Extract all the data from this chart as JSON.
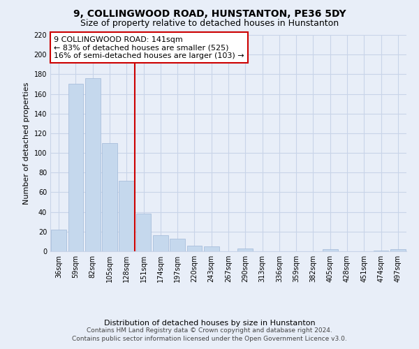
{
  "title": "9, COLLINGWOOD ROAD, HUNSTANTON, PE36 5DY",
  "subtitle": "Size of property relative to detached houses in Hunstanton",
  "xlabel": "Distribution of detached houses by size in Hunstanton",
  "ylabel": "Number of detached properties",
  "bar_labels": [
    "36sqm",
    "59sqm",
    "82sqm",
    "105sqm",
    "128sqm",
    "151sqm",
    "174sqm",
    "197sqm",
    "220sqm",
    "243sqm",
    "267sqm",
    "290sqm",
    "313sqm",
    "336sqm",
    "359sqm",
    "382sqm",
    "405sqm",
    "428sqm",
    "451sqm",
    "474sqm",
    "497sqm"
  ],
  "bar_values": [
    22,
    170,
    176,
    110,
    72,
    38,
    16,
    13,
    6,
    5,
    0,
    3,
    0,
    0,
    0,
    0,
    2,
    0,
    0,
    1,
    2
  ],
  "bar_color": "#c5d8ed",
  "bar_edge_color": "#a0b8d8",
  "vline_x": 4.5,
  "vline_color": "#cc0000",
  "ylim": [
    0,
    220
  ],
  "yticks": [
    0,
    20,
    40,
    60,
    80,
    100,
    120,
    140,
    160,
    180,
    200,
    220
  ],
  "annotation_title": "9 COLLINGWOOD ROAD: 141sqm",
  "annotation_line1": "← 83% of detached houses are smaller (525)",
  "annotation_line2": "16% of semi-detached houses are larger (103) →",
  "annotation_box_color": "white",
  "annotation_box_edge": "#cc0000",
  "footer1": "Contains HM Land Registry data © Crown copyright and database right 2024.",
  "footer2": "Contains public sector information licensed under the Open Government Licence v3.0.",
  "bg_color": "#e8eef8",
  "plot_bg_color": "#e8eef8",
  "grid_color": "#c8d4e8",
  "title_fontsize": 10,
  "subtitle_fontsize": 9,
  "ylabel_fontsize": 8,
  "xlabel_fontsize": 8,
  "tick_fontsize": 7,
  "ann_fontsize": 8,
  "footer_fontsize": 6.5
}
